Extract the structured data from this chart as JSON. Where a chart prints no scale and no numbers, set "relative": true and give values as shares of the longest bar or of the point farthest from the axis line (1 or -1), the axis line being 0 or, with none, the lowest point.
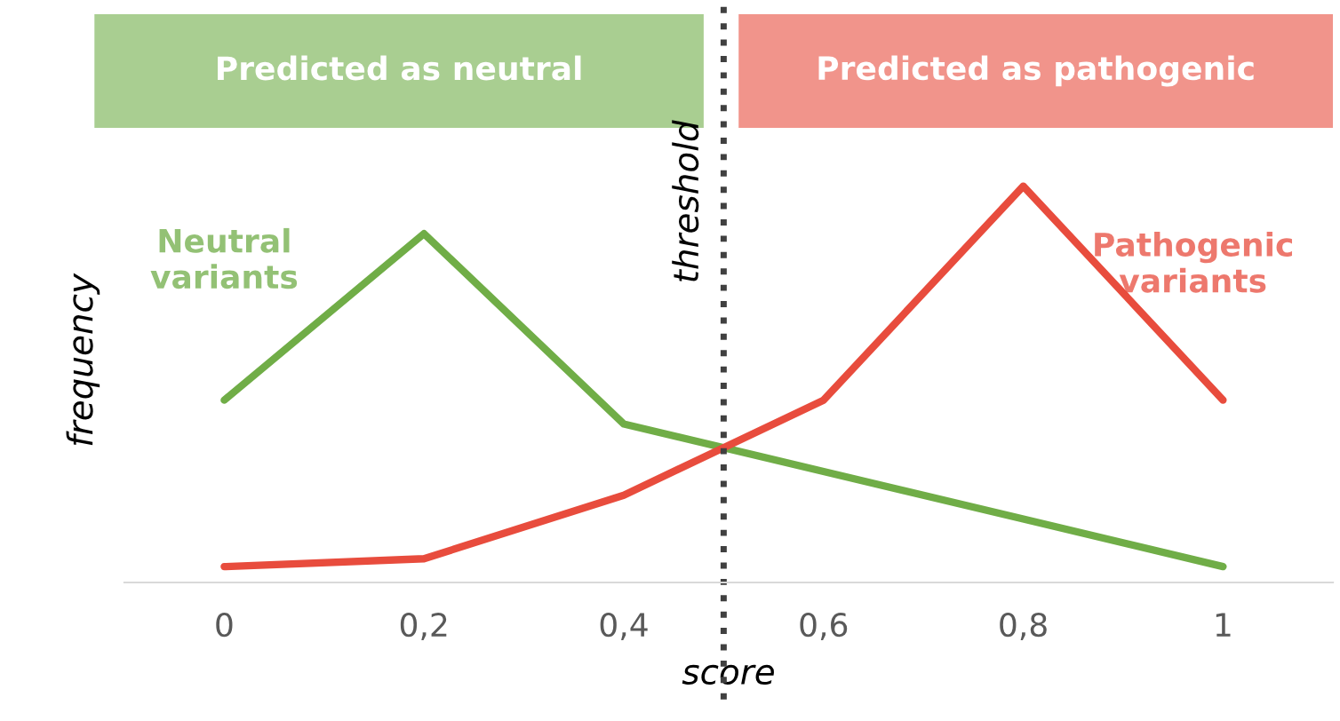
{
  "chart_data": {
    "type": "line",
    "relative": true,
    "xlabel": "score",
    "ylabel": "frequency",
    "x": [
      0,
      0.2,
      0.4,
      0.6,
      0.8,
      1
    ],
    "xlim": [
      -0.1,
      1.11
    ],
    "xticks": [
      {
        "value": 0,
        "label": "0"
      },
      {
        "value": 0.2,
        "label": "0,2"
      },
      {
        "value": 0.4,
        "label": "0,4"
      },
      {
        "value": 0.6,
        "label": "0,6"
      },
      {
        "value": 0.8,
        "label": "0,8"
      },
      {
        "value": 1,
        "label": "1"
      }
    ],
    "series": [
      {
        "name": "Neutral variants",
        "color": "#70ad47",
        "values": [
          0.46,
          0.88,
          0.4,
          0.28,
          0.16,
          0.04
        ]
      },
      {
        "name": "Pathogenic variants",
        "color": "#e84c3d",
        "values": [
          0.04,
          0.06,
          0.22,
          0.46,
          1,
          0.46
        ]
      }
    ],
    "ref_lines": [
      {
        "axis": "x",
        "value": 0.5,
        "label": "threshold",
        "color": "#404040",
        "line_style": "dotted"
      }
    ],
    "annotations": [
      "Predicted as neutral",
      "Predicted as pathogenic"
    ],
    "grid": false,
    "legend": false,
    "marker": "none",
    "line_style": "solid"
  }
}
